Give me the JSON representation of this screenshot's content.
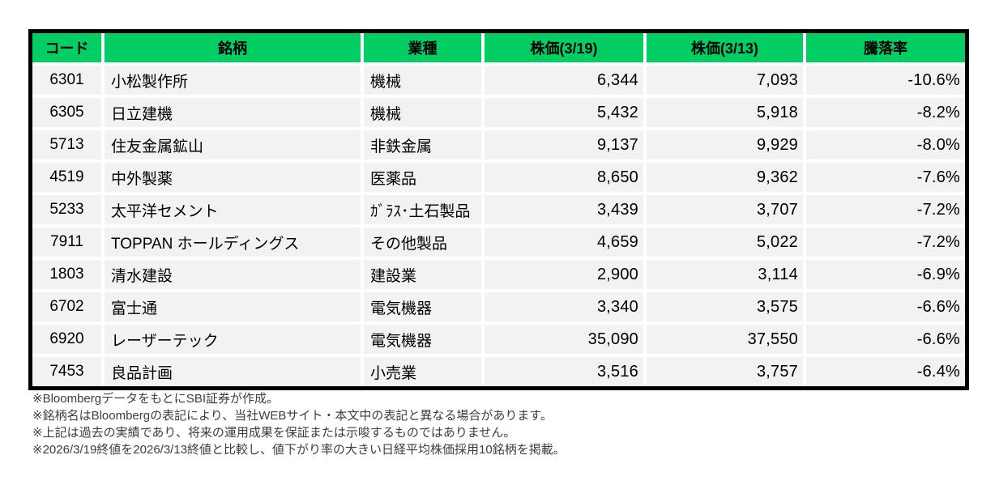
{
  "colors": {
    "header_green": "#02ce63",
    "row_gray": "#f2f2f2",
    "border_black": "#000000"
  },
  "table": {
    "headers": {
      "code": "コード",
      "name": "銘柄",
      "sector": "業種",
      "price_0319": "株価(3/19)",
      "price_0313": "株価(3/13)",
      "change": "騰落率"
    },
    "rows": [
      {
        "code": "6301",
        "name": "小松製作所",
        "sector": "機械",
        "price_0319": "6,344",
        "price_0313": "7,093",
        "change": "-10.6%"
      },
      {
        "code": "6305",
        "name": "日立建機",
        "sector": "機械",
        "price_0319": "5,432",
        "price_0313": "5,918",
        "change": "-8.2%"
      },
      {
        "code": "5713",
        "name": "住友金属鉱山",
        "sector": "非鉄金属",
        "price_0319": "9,137",
        "price_0313": "9,929",
        "change": "-8.0%"
      },
      {
        "code": "4519",
        "name": "中外製薬",
        "sector": "医薬品",
        "price_0319": "8,650",
        "price_0313": "9,362",
        "change": "-7.6%"
      },
      {
        "code": "5233",
        "name": "太平洋セメント",
        "sector": "ｶﾞﾗｽ･土石製品",
        "price_0319": "3,439",
        "price_0313": "3,707",
        "change": "-7.2%"
      },
      {
        "code": "7911",
        "name": "TOPPAN ホールディングス",
        "sector": "その他製品",
        "price_0319": "4,659",
        "price_0313": "5,022",
        "change": "-7.2%"
      },
      {
        "code": "1803",
        "name": "清水建設",
        "sector": "建設業",
        "price_0319": "2,900",
        "price_0313": "3,114",
        "change": "-6.9%"
      },
      {
        "code": "6702",
        "name": "富士通",
        "sector": "電気機器",
        "price_0319": "3,340",
        "price_0313": "3,575",
        "change": "-6.6%"
      },
      {
        "code": "6920",
        "name": "レーザーテック",
        "sector": "電気機器",
        "price_0319": "35,090",
        "price_0313": "37,550",
        "change": "-6.6%"
      },
      {
        "code": "7453",
        "name": "良品計画",
        "sector": "小売業",
        "price_0319": "3,516",
        "price_0313": "3,757",
        "change": "-6.4%"
      }
    ]
  },
  "footnotes": [
    "※BloombergデータをもとにSBI証券が作成。",
    "※銘柄名はBloombergの表記により、当社WEBサイト・本文中の表記と異なる場合があります。",
    "※上記は過去の実績であり、将来の運用成果を保証または示唆するものではありません。",
    "※2026/3/19終値を2026/3/13終値と比較し、値下がり率の大きい日経平均株価採用10銘柄を掲載。"
  ]
}
